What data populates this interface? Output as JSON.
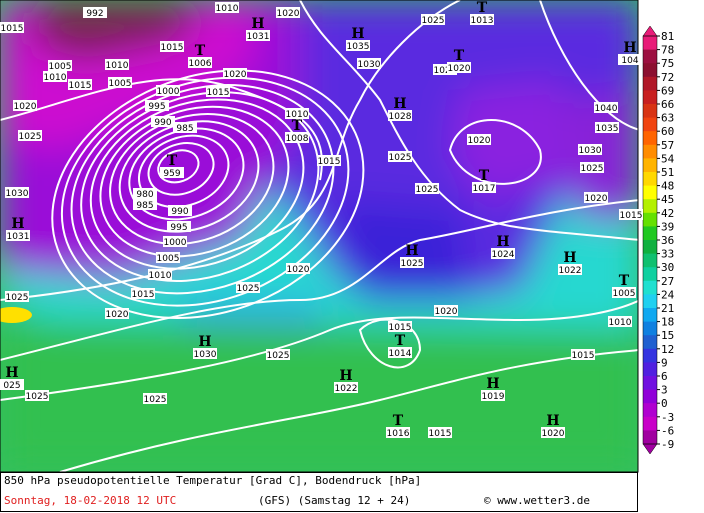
{
  "map": {
    "colorbar": {
      "ticks": [
        81,
        78,
        75,
        72,
        69,
        66,
        63,
        60,
        57,
        54,
        51,
        48,
        45,
        42,
        39,
        36,
        33,
        30,
        27,
        24,
        21,
        18,
        15,
        12,
        9,
        6,
        3,
        0,
        -3,
        -6,
        -9
      ],
      "colors": [
        "#e81c78",
        "#9c1040",
        "#8c1030",
        "#b01828",
        "#c82020",
        "#d83414",
        "#f04410",
        "#ff6400",
        "#ff8c00",
        "#ffb400",
        "#ffd800",
        "#ffff00",
        "#b4f000",
        "#64e000",
        "#20c820",
        "#10b040",
        "#10c070",
        "#10d0a0",
        "#20e0d0",
        "#20d0f0",
        "#10a8f0",
        "#1080e0",
        "#2060d0",
        "#3434e0",
        "#5020e0",
        "#7010e0",
        "#9000d8",
        "#b000d0",
        "#c800c8",
        "#a000a0"
      ]
    },
    "isobar_labels": [
      "1015",
      "992",
      "1010",
      "1020",
      "1025",
      "1015",
      "1005",
      "1010",
      "1010",
      "1015",
      "1005",
      "1020",
      "1030",
      "1020",
      "1000",
      "1015",
      "995",
      "1020",
      "990",
      "985",
      "1010",
      "1040",
      "1025",
      "1035",
      "1020",
      "1030",
      "1015",
      "1025",
      "1025",
      "1030",
      "980",
      "985",
      "990",
      "1025",
      "1020",
      "1015",
      "995",
      "1000",
      "1005",
      "1010",
      "1020",
      "1025",
      "1015",
      "1025",
      "1020",
      "1020",
      "1015",
      "1010",
      "1025",
      "1015",
      "1025",
      "1025",
      "1015"
    ],
    "pressure_centers": [
      {
        "symbol": "T",
        "value": "959"
      },
      {
        "symbol": "H",
        "value": "1031"
      },
      {
        "symbol": "T",
        "value": "1006"
      },
      {
        "symbol": "H",
        "value": "1031"
      },
      {
        "symbol": "H",
        "value": "1035"
      },
      {
        "symbol": "T",
        "value": "1020"
      },
      {
        "symbol": "H",
        "value": "1028"
      },
      {
        "symbol": "T",
        "value": "1008"
      },
      {
        "symbol": "T",
        "value": "1017"
      },
      {
        "symbol": "H",
        "value": "1025"
      },
      {
        "symbol": "H",
        "value": "1024"
      },
      {
        "symbol": "H",
        "value": "1022"
      },
      {
        "symbol": "T",
        "value": "1005"
      },
      {
        "symbol": "H",
        "value": "1030"
      },
      {
        "symbol": "T",
        "value": "1014"
      },
      {
        "symbol": "H",
        "value": "1022"
      },
      {
        "symbol": "H",
        "value": "1019"
      },
      {
        "symbol": "H",
        "value": "1020"
      },
      {
        "symbol": "T",
        "value": "1016"
      },
      {
        "symbol": "H",
        "value": "025"
      },
      {
        "symbol": "T",
        "value": "1013"
      },
      {
        "symbol": "H",
        "value": "104"
      }
    ]
  },
  "footer": {
    "title": "850 hPa pseudopotentielle Temperatur [Grad C], Bodendruck [hPa]",
    "date": "Sonntag, 18-02-2018  12 UTC",
    "model": "(GFS)  (Samstag 12 + 24)",
    "credit": "© www.wetter3.de"
  }
}
